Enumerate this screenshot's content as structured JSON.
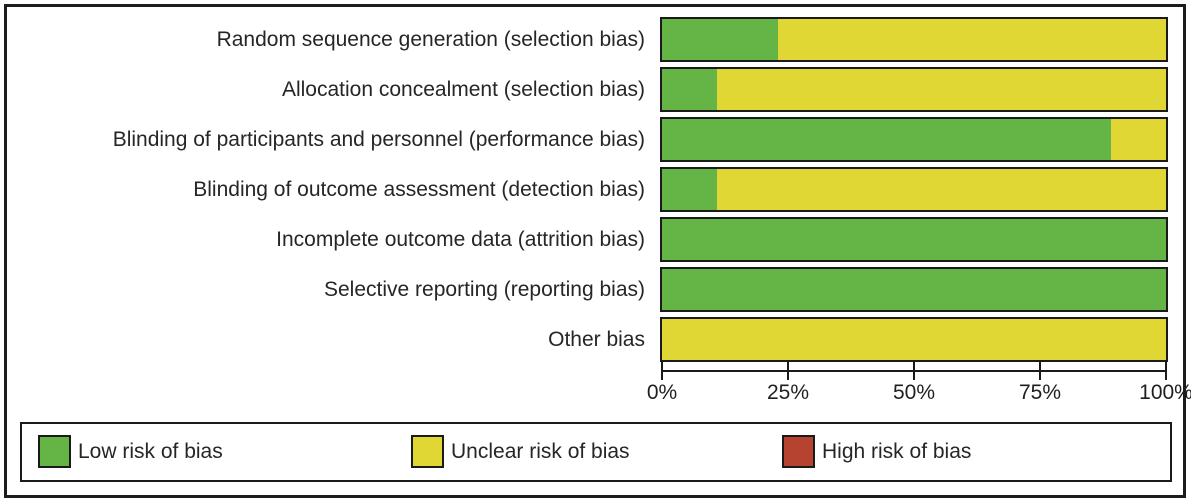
{
  "figure": {
    "background": "#ffffff",
    "frame_border_color": "#1c1c1c"
  },
  "chart_data": {
    "type": "bar",
    "variant": "horizontal-stacked-100-percent",
    "title": "",
    "categories": [
      "Random sequence generation (selection bias)",
      "Allocation concealment (selection bias)",
      "Blinding of participants and personnel (performance bias)",
      "Blinding of outcome assessment (detection bias)",
      "Incomplete outcome data (attrition bias)",
      "Selective reporting (reporting bias)",
      "Other bias"
    ],
    "series": [
      {
        "name": "Low risk of bias",
        "key": "low",
        "values": [
          23,
          11,
          89,
          11,
          100,
          100,
          0
        ]
      },
      {
        "name": "Unclear risk of bias",
        "key": "unclear",
        "values": [
          77,
          89,
          11,
          89,
          0,
          0,
          100
        ]
      },
      {
        "name": "High risk of bias",
        "key": "high",
        "values": [
          0,
          0,
          0,
          0,
          0,
          0,
          0
        ]
      }
    ],
    "x_axis": {
      "range": [
        0,
        100
      ],
      "tick_labels": [
        "0%",
        "25%",
        "50%",
        "75%",
        "100%"
      ],
      "grid": false
    },
    "legend": {
      "position": "bottom",
      "items": [
        {
          "label": "Low risk of bias",
          "key": "low"
        },
        {
          "label": "Unclear risk of bias",
          "key": "unclear"
        },
        {
          "label": "High risk of bias",
          "key": "high"
        }
      ]
    },
    "colors": {
      "low": "#65b546",
      "unclear": "#e0d735",
      "high": "#b5432f"
    }
  }
}
